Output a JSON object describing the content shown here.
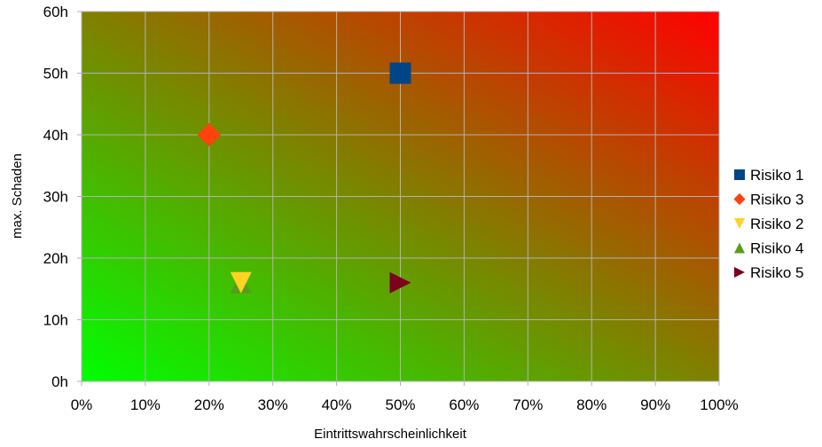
{
  "chart_data": {
    "type": "scatter",
    "title": "",
    "xlabel": "Eintrittswahrscheinlichkeit",
    "ylabel": "max. Schaden",
    "xlim": [
      0,
      100
    ],
    "ylim": [
      0,
      60
    ],
    "x_tick_labels": [
      "0%",
      "10%",
      "20%",
      "30%",
      "40%",
      "50%",
      "60%",
      "70%",
      "80%",
      "90%",
      "100%"
    ],
    "y_tick_labels": [
      "0h",
      "10h",
      "20h",
      "30h",
      "40h",
      "50h",
      "60h"
    ],
    "grid": true,
    "background": "gradient green (bottom-left) to red (top-right)",
    "legend_position": "right",
    "series": [
      {
        "name": "Risiko 1",
        "marker": "square",
        "color": "#004586",
        "points": [
          {
            "x": 50,
            "y": 50
          }
        ]
      },
      {
        "name": "Risiko 3",
        "marker": "diamond",
        "color": "#ff420e",
        "points": [
          {
            "x": 20,
            "y": 40
          }
        ]
      },
      {
        "name": "Risiko 2",
        "marker": "triangle-down",
        "color": "#ffd320",
        "points": [
          {
            "x": 25,
            "y": 16
          }
        ]
      },
      {
        "name": "Risiko 4",
        "marker": "triangle-up",
        "color": "#579d1c",
        "points": [
          {
            "x": 25,
            "y": 16
          }
        ]
      },
      {
        "name": "Risiko 5",
        "marker": "triangle-right",
        "color": "#7e0021",
        "points": [
          {
            "x": 50,
            "y": 16
          }
        ]
      }
    ]
  }
}
